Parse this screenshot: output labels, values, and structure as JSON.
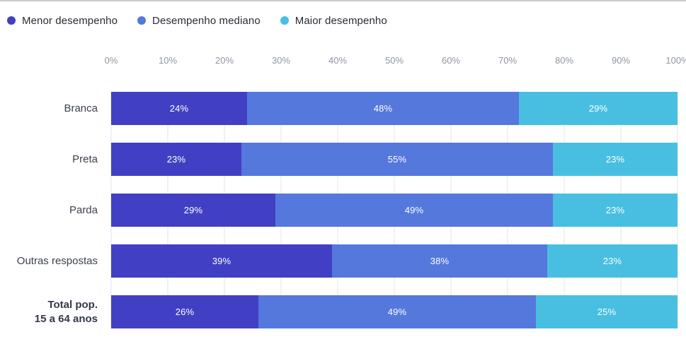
{
  "legend": {
    "items": [
      {
        "name": "menor-desempenho",
        "label": "Menor desempenho",
        "color": "#4140c4"
      },
      {
        "name": "desempenho-mediano",
        "label": "Desempenho mediano",
        "color": "#5578dc"
      },
      {
        "name": "maior-desempenho",
        "label": "Maior desempenho",
        "color": "#48bfe0"
      }
    ]
  },
  "chart_data": {
    "type": "bar",
    "orientation": "horizontal",
    "stacked": true,
    "title": "",
    "xlabel": "",
    "ylabel": "",
    "xlim": [
      0,
      100
    ],
    "x_ticks": [
      "0%",
      "10%",
      "20%",
      "30%",
      "40%",
      "50%",
      "60%",
      "70%",
      "80%",
      "90%",
      "100%"
    ],
    "grid": true,
    "legend_position": "top-left",
    "value_suffix": "%",
    "categories": [
      {
        "label": "Branca",
        "bold": false
      },
      {
        "label": "Preta",
        "bold": false
      },
      {
        "label": "Parda",
        "bold": false
      },
      {
        "label": "Outras respostas",
        "bold": false
      },
      {
        "label": "Total pop.\n15 a 64 anos",
        "bold": true
      }
    ],
    "series": [
      {
        "name": "Menor desempenho",
        "color": "#4140c4",
        "values": [
          24,
          23,
          29,
          39,
          26
        ]
      },
      {
        "name": "Desempenho mediano",
        "color": "#5578dc",
        "values": [
          48,
          55,
          49,
          38,
          49
        ]
      },
      {
        "name": "Maior desempenho",
        "color": "#48bfe0",
        "values": [
          29,
          23,
          23,
          23,
          25
        ]
      }
    ]
  },
  "colors": {
    "grid": "#e4e5e8",
    "axis_text": "#8e95a4",
    "category_text": "#3c414d",
    "value_text": "#ffffff",
    "top_border": "#c9cbce"
  }
}
